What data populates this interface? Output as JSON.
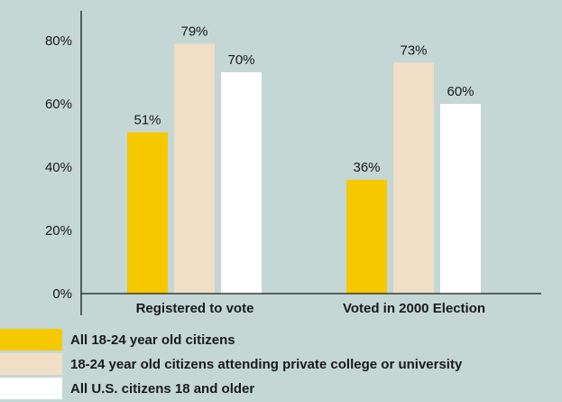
{
  "chart_data": {
    "type": "bar",
    "categories": [
      "Registered to vote",
      "Voted in 2000 Election"
    ],
    "series": [
      {
        "name": "All 18-24 year old citizens",
        "values": [
          51,
          36
        ],
        "color": "#f5c800"
      },
      {
        "name": "18-24 year old citizens attending private college or university",
        "values": [
          79,
          73
        ],
        "color": "#efdfc6"
      },
      {
        "name": "All U.S. citizens 18 and older",
        "values": [
          70,
          60
        ],
        "color": "#ffffff"
      }
    ],
    "ylim": [
      0,
      80
    ],
    "yticks": [
      0,
      20,
      40,
      60,
      80
    ],
    "ytick_labels": [
      "0%",
      "20%",
      "40%",
      "60%",
      "80%"
    ],
    "value_suffix": "%",
    "grid": false,
    "legend_placement": "bottom-left"
  }
}
